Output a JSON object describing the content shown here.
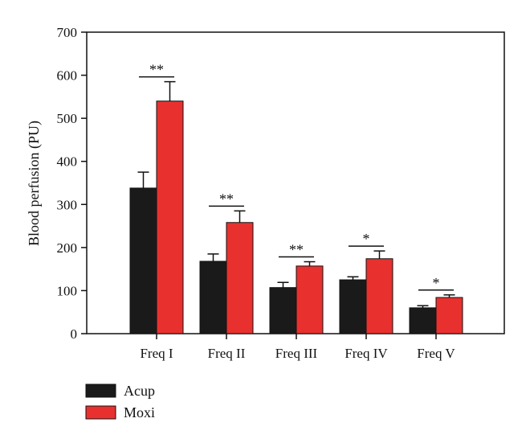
{
  "chart_data": {
    "type": "bar",
    "title": "",
    "xlabel": "",
    "ylabel": "Blood perfusion (PU)",
    "ylim": [
      0,
      700
    ],
    "yticks": [
      0,
      100,
      200,
      300,
      400,
      500,
      600,
      700
    ],
    "grid": false,
    "legend_position": "bottom-left",
    "categories": [
      "Freq I",
      "Freq II",
      "Freq III",
      "Freq IV",
      "Freq V"
    ],
    "series": [
      {
        "name": "Acup",
        "color": "#1a1a1a",
        "values": [
          338,
          168,
          107,
          125,
          60
        ],
        "errors": [
          37,
          17,
          12,
          7,
          5
        ]
      },
      {
        "name": "Moxi",
        "color": "#e8312f",
        "values": [
          540,
          258,
          157,
          174,
          84
        ],
        "errors": [
          45,
          27,
          10,
          18,
          6
        ]
      }
    ],
    "significance": [
      "**",
      "**",
      "**",
      "*",
      "*"
    ]
  }
}
